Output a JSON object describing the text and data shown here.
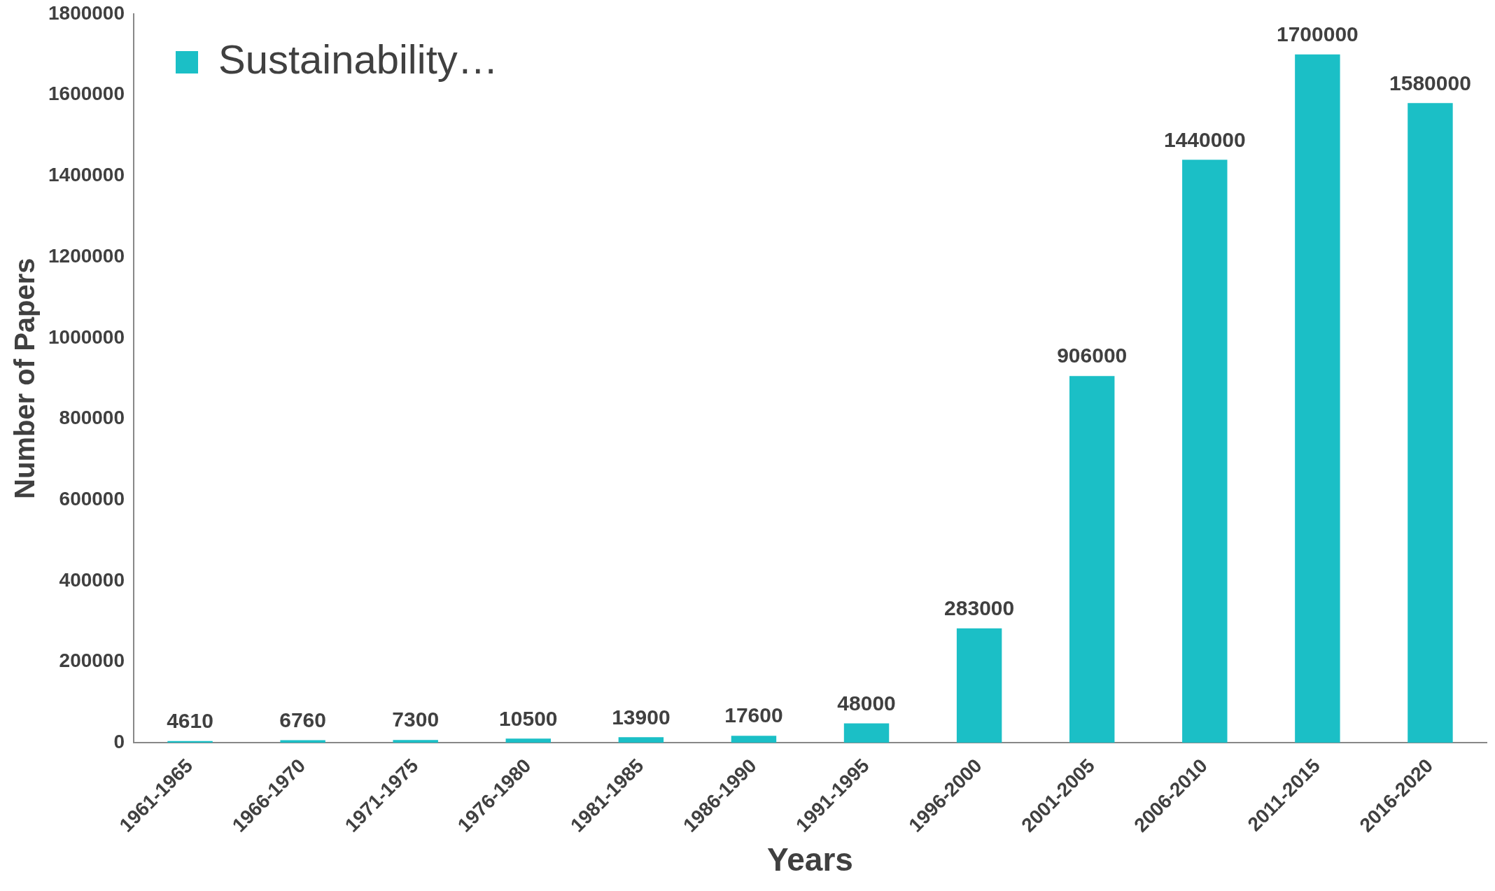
{
  "chart_data": {
    "type": "bar",
    "xlabel": "Years",
    "ylabel": "Number of Papers",
    "categories": [
      "1961-1965",
      "1966-1970",
      "1971-1975",
      "1976-1980",
      "1981-1985",
      "1986-1990",
      "1991-1995",
      "1996-2000",
      "2001-2005",
      "2006-2010",
      "2011-2015",
      "2016-2020"
    ],
    "series": [
      {
        "name": "Sustainability…",
        "color": "#1bbfc6",
        "values": [
          4610,
          6760,
          7300,
          10500,
          13900,
          17600,
          48000,
          283000,
          906000,
          1440000,
          1700000,
          1580000
        ]
      }
    ],
    "ylim": [
      0,
      1800000
    ],
    "yticks": [
      0,
      200000,
      400000,
      600000,
      800000,
      1000000,
      1200000,
      1400000,
      1600000,
      1800000
    ],
    "grid": false,
    "legend": "top left",
    "data_labels": true
  }
}
